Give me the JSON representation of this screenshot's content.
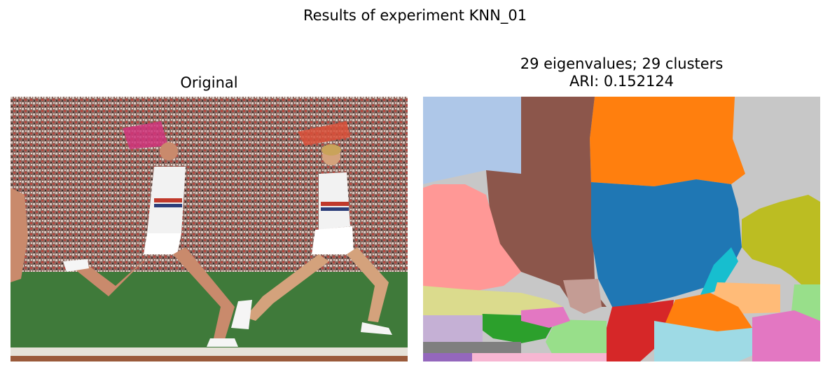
{
  "figure": {
    "suptitle": "Results of experiment KNN_01"
  },
  "left_panel": {
    "title": "Original"
  },
  "right_panel": {
    "title_line1": "29 eigenvalues; 29 clusters",
    "title_line2": "ARI: 0.152124"
  },
  "palette": {
    "tab_blue": "#1f77b4",
    "tab_orange": "#ff7f0e",
    "tab_green": "#2ca02c",
    "tab_red": "#d62728",
    "tab_brown": "#8c564b",
    "tab_pink": "#e377c2",
    "tab_gray": "#c7c7c7",
    "tab_olive": "#bcbd22",
    "tab_cyan": "#17becf",
    "light_blue": "#aec7e8",
    "light_red": "#ff9896",
    "light_green": "#98df8a",
    "light_orange": "#ffbb78",
    "light_brown": "#c49c94",
    "light_olive": "#dbdb8d",
    "light_purple": "#c5b0d5",
    "light_cyan": "#9edae5",
    "light_pink": "#f7b6d2",
    "purple": "#9467bd",
    "grass": "#3f7a3a",
    "crowd": "#8a6a62"
  }
}
